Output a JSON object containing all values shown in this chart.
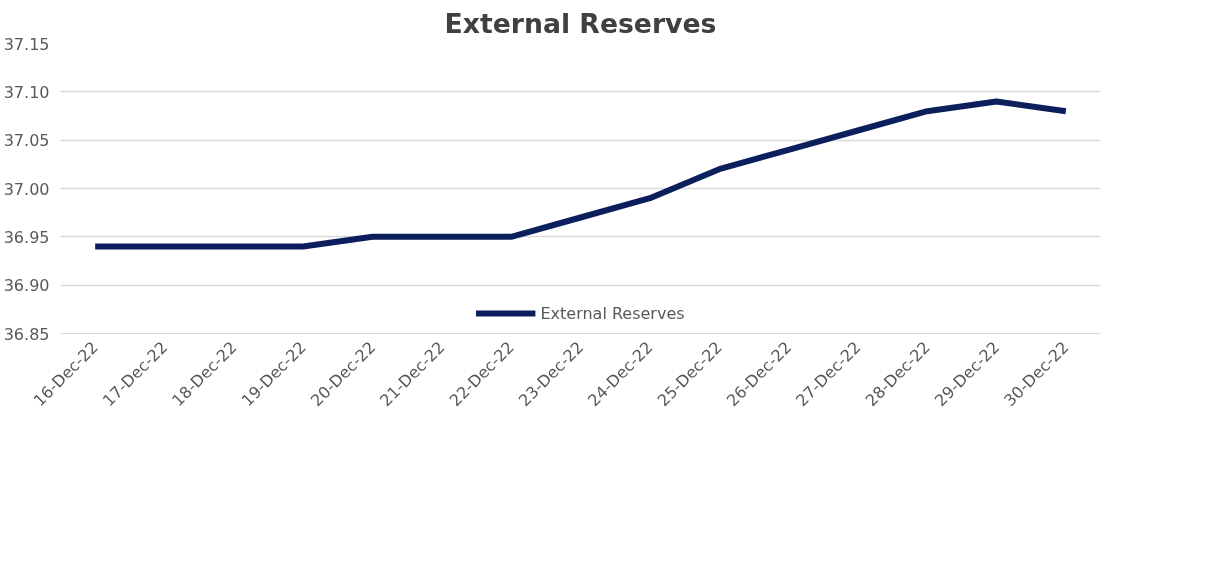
{
  "chart_data": {
    "type": "line",
    "title": "External Reserves",
    "categories": [
      "16-Dec-22",
      "17-Dec-22",
      "18-Dec-22",
      "19-Dec-22",
      "20-Dec-22",
      "21-Dec-22",
      "22-Dec-22",
      "23-Dec-22",
      "24-Dec-22",
      "25-Dec-22",
      "26-Dec-22",
      "27-Dec-22",
      "28-Dec-22",
      "29-Dec-22",
      "30-Dec-22"
    ],
    "series": [
      {
        "name": "External Reserves",
        "color": "#0b1f5c",
        "values": [
          36.94,
          36.94,
          36.94,
          36.94,
          36.95,
          36.95,
          36.95,
          36.97,
          36.99,
          37.02,
          37.04,
          37.06,
          37.08,
          37.09,
          37.08
        ]
      }
    ],
    "ylim": [
      36.85,
      37.15
    ],
    "yticks": [
      {
        "value": 36.85,
        "label": "36.85"
      },
      {
        "value": 36.9,
        "label": "36.90"
      },
      {
        "value": 36.95,
        "label": "36.95"
      },
      {
        "value": 37.0,
        "label": "37.00"
      },
      {
        "value": 37.05,
        "label": "37.05"
      },
      {
        "value": 37.1,
        "label": "37.10"
      },
      {
        "value": 37.15,
        "label": "37.15"
      }
    ],
    "grid": "y",
    "legend": "bottom",
    "marker": "none",
    "line_style": "solid"
  }
}
